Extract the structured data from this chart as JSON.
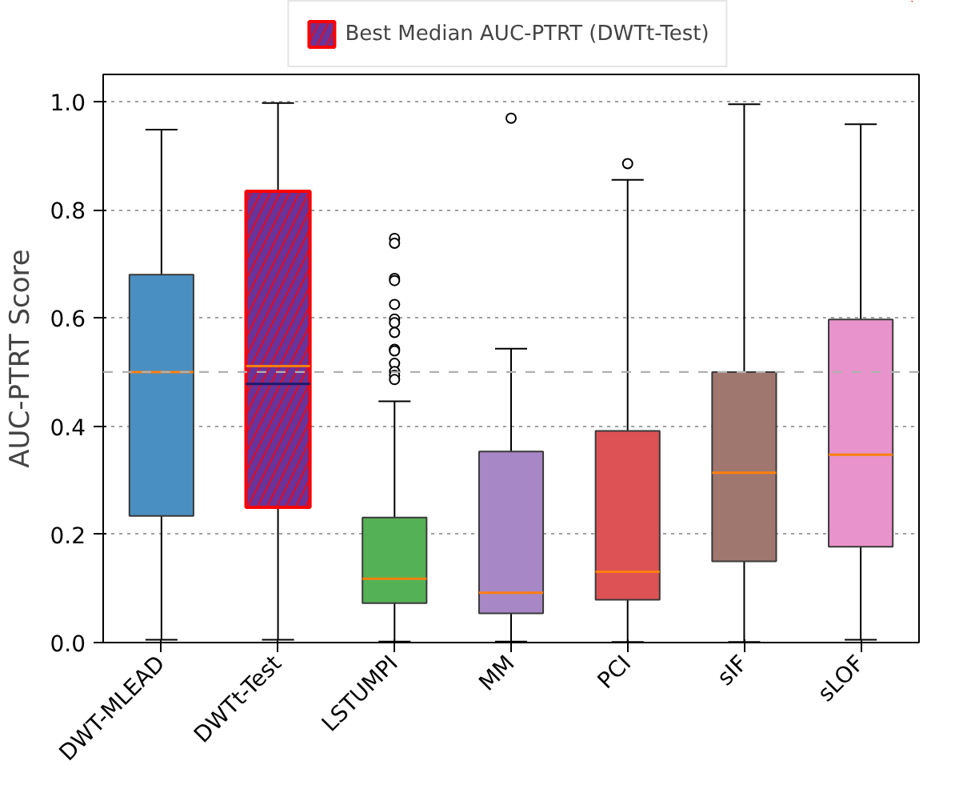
{
  "chart_data": {
    "type": "box",
    "ylabel": "AUC-PTRT Score",
    "categories": [
      "DWT-MLEAD",
      "DWTt-Test",
      "LSTUMPI",
      "MM",
      "PCI",
      "sIF",
      "sLOF"
    ],
    "series": [
      {
        "name": "Best Median AUC-PTRT (DWTt-Test)",
        "color": "#ff0000",
        "colors": [
          null,
          "#6a3399",
          null,
          null,
          null,
          null,
          null
        ],
        "boxes": [
          null,
          {
            "low": 0.005,
            "q1": 0.25,
            "median": 0.511,
            "q3": 0.834,
            "high": 0.997,
            "mean": 0.478
          },
          null,
          null,
          null,
          null,
          null
        ]
      },
      {
        "colors": [
          "#4a8fc1",
          null,
          "#55b155",
          "#a887c7",
          "#dd5254",
          "#a0776f",
          "#e893cb"
        ],
        "boxes": [
          {
            "low": 0.005,
            "q1": 0.234,
            "median": 0.5,
            "q3": 0.68,
            "high": 0.948
          },
          null,
          {
            "low": 0.002,
            "q1": 0.073,
            "median": 0.118,
            "q3": 0.231,
            "high": 0.446,
            "outliers": [
              0.747,
              0.738,
              0.673,
              0.669,
              0.625,
              0.598,
              0.591,
              0.573,
              0.542,
              0.539,
              0.516,
              0.501,
              0.494,
              0.486
            ]
          },
          {
            "low": 0.002,
            "q1": 0.054,
            "median": 0.092,
            "q3": 0.353,
            "high": 0.543,
            "outliers": [
              0.969
            ]
          },
          {
            "low": 0.001,
            "q1": 0.079,
            "median": 0.131,
            "q3": 0.391,
            "high": 0.855,
            "outliers": [
              0.885
            ]
          },
          {
            "low": 0.001,
            "q1": 0.15,
            "median": 0.314,
            "q3": 0.5,
            "high": 0.995
          },
          {
            "low": 0.005,
            "q1": 0.177,
            "median": 0.347,
            "q3": 0.597,
            "high": 0.958
          }
        ]
      }
    ],
    "ylim": [
      0,
      1.05
    ],
    "yticks": [
      {
        "value": 0,
        "label": "0.0"
      },
      {
        "value": 0.2,
        "label": "0.2"
      },
      {
        "value": 0.4,
        "label": "0.4"
      },
      {
        "value": 0.6,
        "label": "0.6"
      },
      {
        "value": 0.8,
        "label": "0.8"
      },
      {
        "value": 1,
        "label": "1.0"
      }
    ],
    "ref_lines": [
      {
        "axis": "y",
        "value": 0.5,
        "color": "#b0b0b0",
        "line_style": "dashed"
      }
    ],
    "grid": "y",
    "legend": "top"
  }
}
